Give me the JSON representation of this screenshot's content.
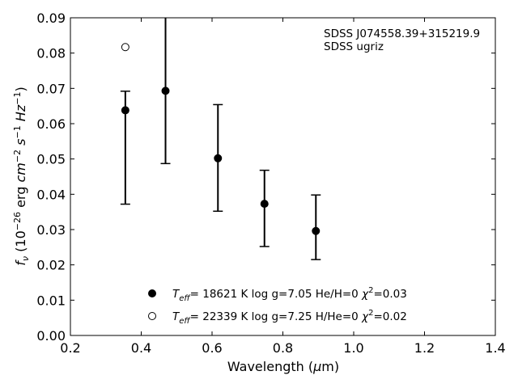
{
  "chart_data": {
    "type": "scatter",
    "xlabel_main": "Wavelength (",
    "xlabel_mu": "μ",
    "xlabel_end": "m)",
    "ylabel": "",
    "xlim": [
      0.2,
      1.4
    ],
    "ylim": [
      0.0,
      0.09
    ],
    "x_ticks": [
      "0.2",
      "0.4",
      "0.6",
      "0.8",
      "1.0",
      "1.2",
      "1.4"
    ],
    "y_ticks": [
      "0.00",
      "0.01",
      "0.02",
      "0.03",
      "0.04",
      "0.05",
      "0.06",
      "0.07",
      "0.08",
      "0.09"
    ],
    "annotation_lines": [
      "SDSS J074558.39+315219.9",
      "SDSS ugriz"
    ],
    "series": [
      {
        "marker": "filled-circle",
        "x": [
          0.3551,
          0.4686,
          0.6166,
          0.748,
          0.8932
        ],
        "y": [
          0.0638,
          0.0693,
          0.0502,
          0.0373,
          0.0296
        ],
        "err_low": [
          0.0372,
          0.0487,
          0.0352,
          0.0252,
          0.0215
        ],
        "err_high": [
          0.0692,
          0.092,
          0.0654,
          0.0468,
          0.0398
        ]
      },
      {
        "marker": "open-circle",
        "x": [
          0.3551
        ],
        "y": [
          0.0817
        ]
      }
    ],
    "legend": [
      {
        "marker": "filled-circle",
        "teff": "= 18621 K  log g=7.05  He/H=0  ",
        "chi": "=0.03"
      },
      {
        "marker": "open-circle",
        "teff": "= 22339 K  log g=7.25  H/He=0  ",
        "chi": "=0.02"
      }
    ]
  }
}
